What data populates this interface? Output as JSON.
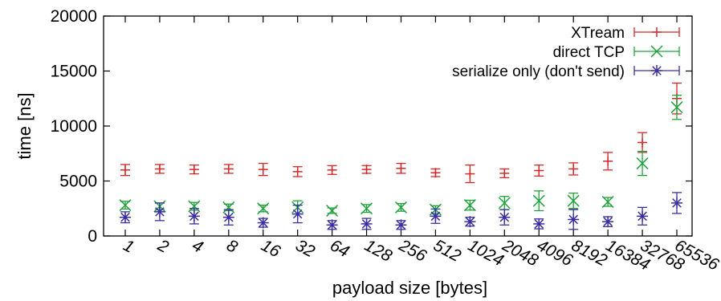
{
  "chart_data": {
    "type": "scatter",
    "title": "",
    "xlabel": "payload size [bytes]",
    "ylabel": "time [ns]",
    "ylim": [
      0,
      20000
    ],
    "yticks": [
      0,
      5000,
      10000,
      15000,
      20000
    ],
    "x_type": "categorical",
    "categories": [
      "1",
      "2",
      "4",
      "8",
      "16",
      "32",
      "64",
      "128",
      "256",
      "512",
      "1024",
      "2048",
      "4096",
      "8192",
      "16384",
      "32768",
      "65536"
    ],
    "grid": false,
    "legend_position": "top-right",
    "series": [
      {
        "name": "XTream",
        "color": "#d62728",
        "marker": "plus",
        "values": [
          6000,
          6100,
          6050,
          6100,
          6050,
          5850,
          6000,
          6050,
          6150,
          5750,
          5650,
          5700,
          5950,
          6100,
          6800,
          8500,
          12500
        ],
        "errors": [
          500,
          400,
          400,
          400,
          550,
          450,
          400,
          350,
          450,
          350,
          800,
          400,
          500,
          550,
          800,
          900,
          1400
        ]
      },
      {
        "name": "direct TCP",
        "color": "#1ea33a",
        "marker": "x",
        "values": [
          2800,
          2700,
          2700,
          2600,
          2500,
          2600,
          2300,
          2500,
          2600,
          2400,
          2800,
          3000,
          3200,
          3200,
          3100,
          6600,
          11700
        ],
        "errors": [
          350,
          300,
          350,
          300,
          300,
          600,
          250,
          350,
          350,
          350,
          450,
          600,
          900,
          700,
          400,
          1100,
          1100
        ]
      },
      {
        "name": "serialize only (don't send)",
        "color": "#3a2fa0",
        "marker": "star",
        "values": [
          1700,
          2200,
          1800,
          1700,
          1200,
          2000,
          1000,
          1100,
          1000,
          1800,
          1300,
          1700,
          1100,
          1500,
          1300,
          1800,
          3000
        ],
        "errors": [
          500,
          800,
          700,
          700,
          400,
          800,
          400,
          500,
          400,
          650,
          400,
          700,
          450,
          900,
          450,
          800,
          950
        ]
      }
    ]
  }
}
